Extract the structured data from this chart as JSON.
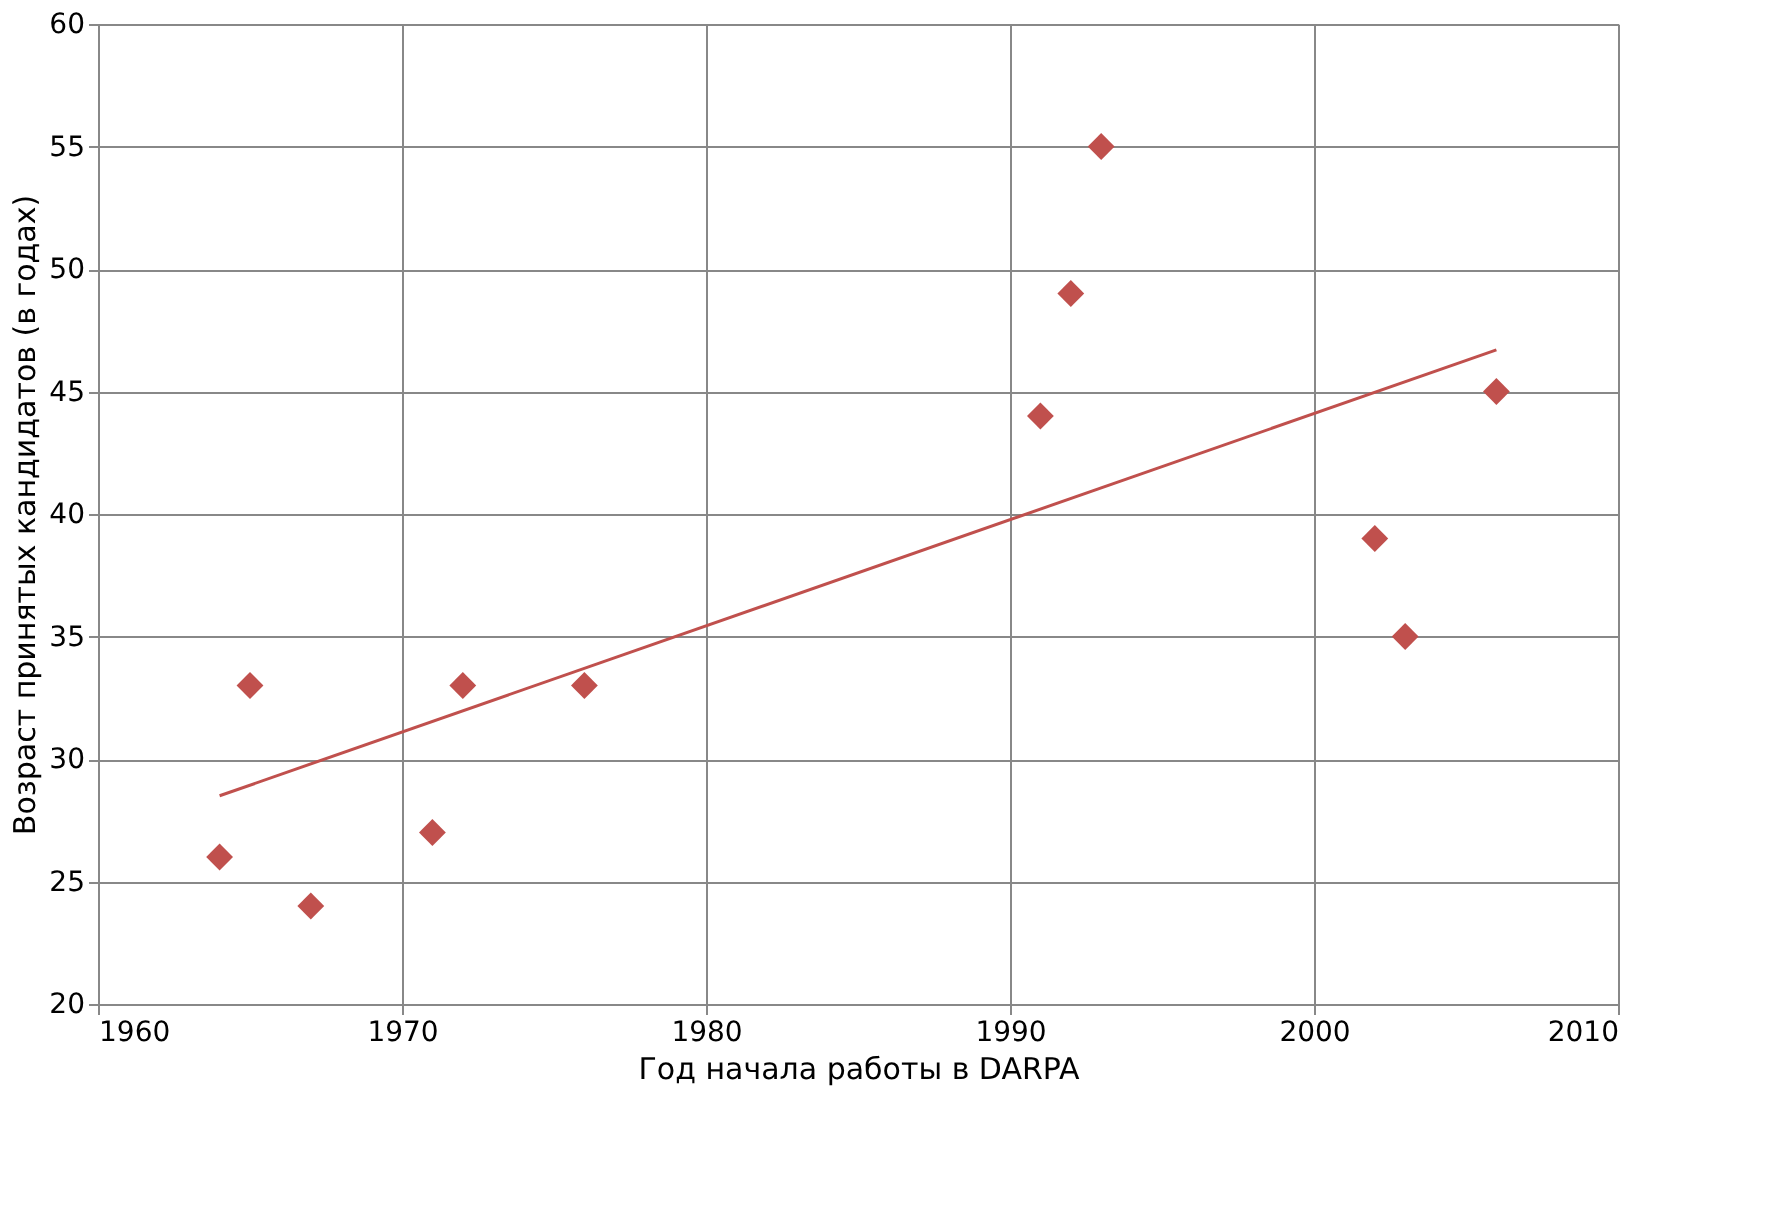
{
  "chart_data": {
    "type": "scatter",
    "xlabel": "Год начала работы в DARPA",
    "ylabel": "Возраст принятых кандидатов (в годах)",
    "xlim": [
      1960,
      2010
    ],
    "xticks": [
      1960,
      1970,
      1980,
      1990,
      2000,
      2010
    ],
    "ylim": [
      20,
      60
    ],
    "yticks": [
      20,
      25,
      30,
      35,
      40,
      45,
      50,
      55,
      60
    ],
    "grid": true,
    "series": [
      {
        "marker": "diamond",
        "color": "#c0504d",
        "x": [
          1964,
          1965,
          1967,
          1971,
          1972,
          1976,
          1991,
          1992,
          1993,
          2002,
          2003,
          2006
        ],
        "values": [
          26,
          33,
          24,
          27,
          33,
          33,
          44,
          49,
          55,
          39,
          35,
          45
        ]
      },
      {
        "type": "line",
        "line_style": "solid",
        "color": "#c0504d",
        "x": [
          1964,
          2006
        ],
        "values": [
          28.5,
          46.7
        ]
      }
    ]
  }
}
